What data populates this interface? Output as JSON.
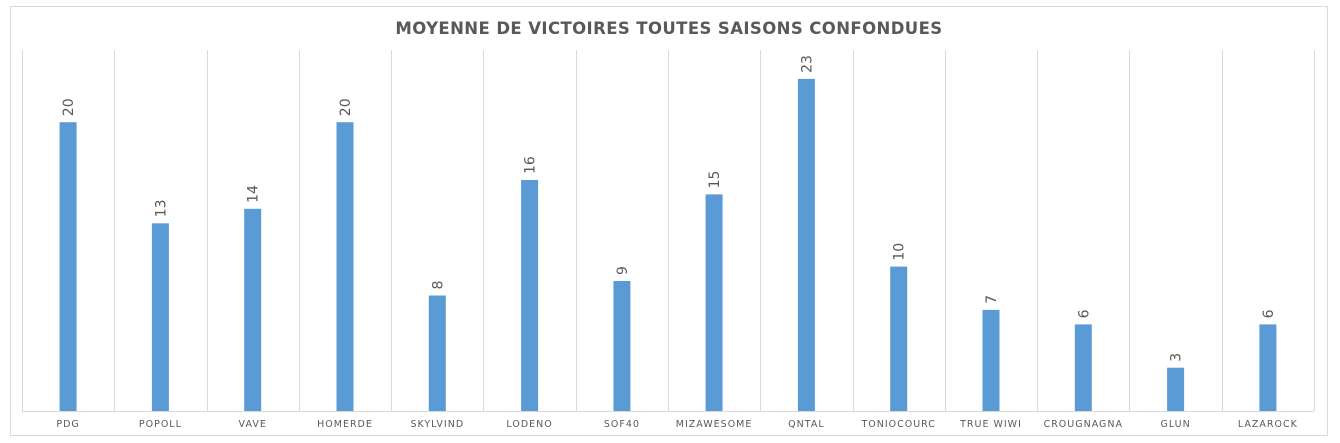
{
  "chart_data": {
    "type": "bar",
    "title": "MOYENNE DE VICTOIRES TOUTES SAISONS CONFONDUES",
    "xlabel": "",
    "ylabel": "",
    "categories": [
      "PDG",
      "POPOLL",
      "VAVE",
      "HOMERDE",
      "SKYLVIND",
      "LODENO",
      "SOF40",
      "MIZAWESOME",
      "QNTAL",
      "TONIOCOURC",
      "TRUE WIWI",
      "CROUGNAGNA",
      "GLUN",
      "LAZAROCK"
    ],
    "values": [
      20,
      13,
      14,
      20,
      8,
      16,
      9,
      15,
      23,
      10,
      7,
      6,
      3,
      6
    ],
    "data_labels": [
      "20",
      "13",
      "14",
      "20",
      "8",
      "16",
      "9",
      "15",
      "23",
      "10",
      "7",
      "6",
      "3",
      "6"
    ],
    "ylim": [
      0,
      25
    ],
    "grid": "vertical",
    "legend": "none",
    "bar_color": "#5b9bd5",
    "text_color": "#595959",
    "grid_color": "#d9d9d9"
  }
}
